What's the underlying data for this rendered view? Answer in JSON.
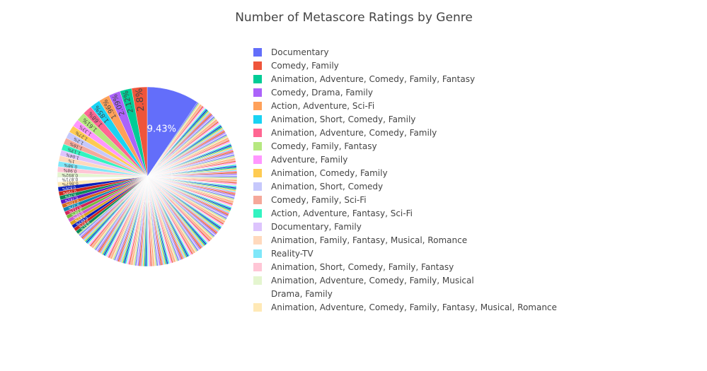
{
  "chart_data": {
    "type": "pie",
    "title": "Number of Metascore Ratings by Genre",
    "legend_position": "right",
    "slices": [
      {
        "label": "Documentary",
        "percent": 9.43,
        "color": "#636efa",
        "text_color": "#ffffff"
      },
      {
        "label": "Comedy, Family",
        "percent": 2.8,
        "color": "#EF553B",
        "text_color": "#444444"
      },
      {
        "label": "Animation, Adventure, Comedy, Family, Fantasy",
        "percent": 2.12,
        "color": "#00cc96",
        "text_color": "#444444"
      },
      {
        "label": "Comedy, Drama, Family",
        "percent": 2.09,
        "color": "#ab63fa",
        "text_color": "#444444"
      },
      {
        "label": "Action, Adventure, Sci-Fi",
        "percent": 1.96,
        "color": "#FFA15A",
        "text_color": "#444444"
      },
      {
        "label": "Animation, Short, Comedy, Family",
        "percent": 1.85,
        "color": "#19d3f3",
        "text_color": "#444444"
      },
      {
        "label": "Animation, Adventure, Comedy, Family",
        "percent": 1.68,
        "color": "#FF6692",
        "text_color": "#444444"
      },
      {
        "label": "Comedy, Family, Fantasy",
        "percent": 1.61,
        "color": "#B6E880",
        "text_color": "#444444"
      },
      {
        "label": "Adventure, Family",
        "percent": 1.33,
        "color": "#FF97FF",
        "text_color": "#444444"
      },
      {
        "label": "Animation, Comedy, Family",
        "percent": 1.27,
        "color": "#FECB52",
        "text_color": "#444444"
      },
      {
        "label": "Animation, Short, Comedy",
        "percent": 1.2,
        "color": "#c6c8fc",
        "text_color": "#444444"
      },
      {
        "label": "Comedy, Family, Sci-Fi",
        "percent": 1.16,
        "color": "#f5a89a",
        "text_color": "#444444"
      },
      {
        "label": "Action, Adventure, Fantasy, Sci-Fi",
        "percent": 1.13,
        "color": "#33f3c1",
        "text_color": "#444444"
      },
      {
        "label": "Documentary, Family",
        "percent": 1.04,
        "color": "#ddc4fd",
        "text_color": "#444444"
      },
      {
        "label": "Animation, Family, Fantasy, Musical, Romance",
        "percent": 1.0,
        "color": "#ffd9bd",
        "text_color": "#444444"
      },
      {
        "label": "Reality-TV",
        "percent": 0.98,
        "color": "#7fe7f9",
        "text_color": "#444444"
      },
      {
        "label": "Animation, Short, Comedy, Family, Fantasy",
        "percent": 0.98,
        "color": "#ffc6d6",
        "text_color": "#444444"
      },
      {
        "label": "Animation, Adventure, Comedy, Family, Musical",
        "percent": 0.892,
        "color": "#e4f5cf",
        "text_color": "#444444"
      },
      {
        "label": "Drama, Family",
        "percent": 0.871,
        "color": "#ffffff",
        "text_color": "#444444"
      },
      {
        "label": "Animation, Adventure, Comedy, Family, Fantasy, Musical, Romance",
        "percent": 0.867,
        "color": "#ffe9b6",
        "text_color": "#444444"
      }
    ],
    "other_slice_labels": [
      "0.826%",
      "0.794%",
      "0.76%",
      "0.741%",
      "0.735%",
      "0.72%",
      "0.711%",
      "0.68%",
      "0.68%",
      "0.65%",
      "0.643%",
      "0.63%",
      "0.61%"
    ],
    "remaining_percent": 53.2
  }
}
